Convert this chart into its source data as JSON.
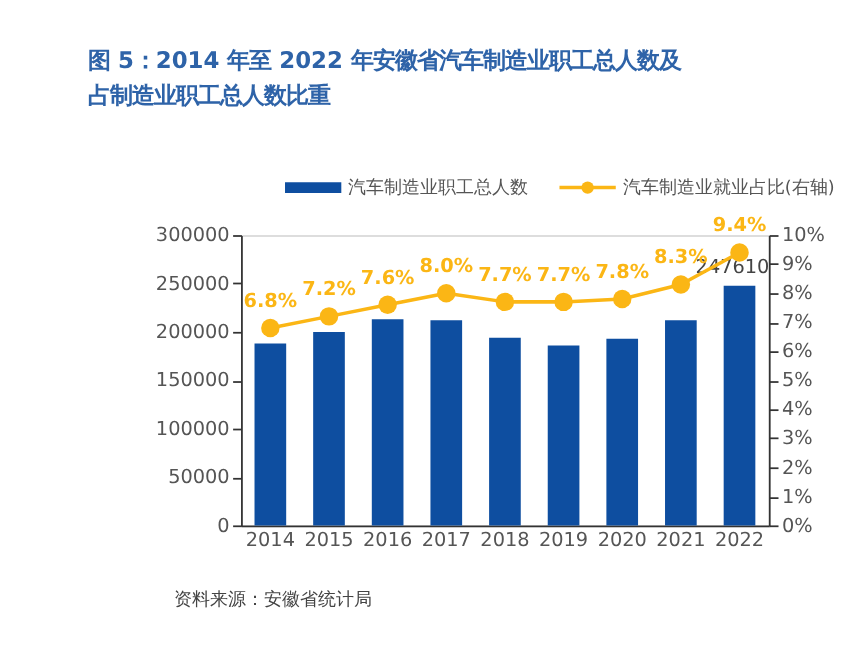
{
  "chart_data": {
    "type": "bar",
    "title": "图 5：2014 年至 2022 年安徽省汽车制造业职工总人数及占制造业职工总人数比重",
    "categories": [
      "2014",
      "2015",
      "2016",
      "2017",
      "2018",
      "2019",
      "2020",
      "2021",
      "2022"
    ],
    "series": [
      {
        "name": "汽车制造业职工总人数",
        "color": "#0e4ea0",
        "values": [
          188000,
          200000,
          213000,
          212000,
          194000,
          186000,
          193000,
          212000,
          247610
        ],
        "value_labels": [
          null,
          null,
          null,
          null,
          null,
          null,
          null,
          null,
          "247610"
        ]
      },
      {
        "name": "汽车制造业就业占比(右轴)",
        "type": "line",
        "axis": "y2",
        "color": "#fbb615",
        "values": [
          6.8,
          7.2,
          7.6,
          8.0,
          7.7,
          7.7,
          7.8,
          8.3,
          9.4
        ],
        "value_labels": [
          "6.8%",
          "7.2%",
          "7.6%",
          "8.0%",
          "7.7%",
          "7.7%",
          "7.8%",
          "8.3%",
          "9.4%"
        ]
      }
    ],
    "ylim": [
      0,
      300000
    ],
    "yticks": [
      0,
      50000,
      100000,
      150000,
      200000,
      250000,
      300000
    ],
    "y2lim": [
      0,
      10
    ],
    "y2ticks": [
      {
        "value": 0,
        "label": "0%"
      },
      {
        "value": 1,
        "label": "1%"
      },
      {
        "value": 2,
        "label": "2%"
      },
      {
        "value": 3,
        "label": "3%"
      },
      {
        "value": 4,
        "label": "4%"
      },
      {
        "value": 5,
        "label": "5%"
      },
      {
        "value": 6,
        "label": "6%"
      },
      {
        "value": 7,
        "label": "7%"
      },
      {
        "value": 8,
        "label": "8%"
      },
      {
        "value": 9,
        "label": "9%"
      },
      {
        "value": 10,
        "label": "10%"
      }
    ],
    "grid": false,
    "legend": "top",
    "marker": "circle",
    "annotations": [
      "资料来源：安徽省统计局"
    ]
  }
}
